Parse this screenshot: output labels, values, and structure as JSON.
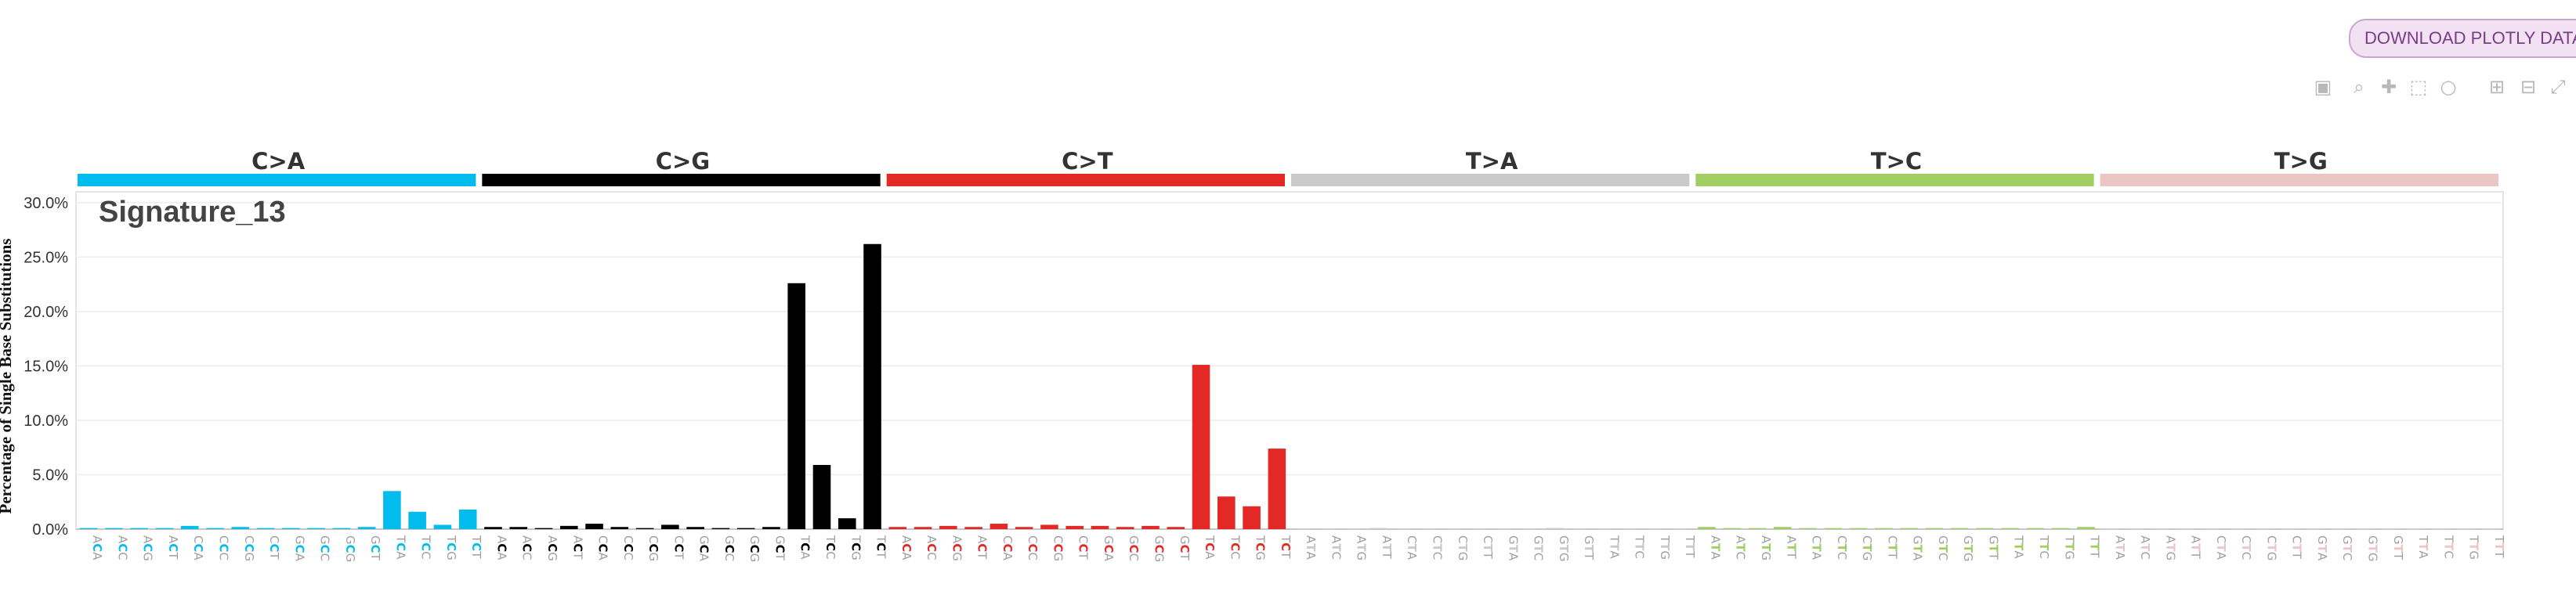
{
  "toolbar": {
    "download_label": "DOWNLOAD PLOTLY DATA S",
    "icons": [
      "camera-icon",
      "zoom-icon",
      "pan-icon",
      "box-select-icon",
      "lasso-icon",
      "zoom-in-icon",
      "zoom-out-icon",
      "autoscale-icon"
    ]
  },
  "chart_data": {
    "type": "bar",
    "title": "Signature_13",
    "ylabel": "Percentage of Single Base Substitutions",
    "ylim": [
      0,
      31
    ],
    "yticks": [
      "0.0%",
      "5.0%",
      "10.0%",
      "15.0%",
      "20.0%",
      "25.0%",
      "30.0%"
    ],
    "grid": true,
    "groups": [
      {
        "name": "C>A",
        "color": "#03bcee",
        "labels": [
          "ACA",
          "ACC",
          "ACG",
          "ACT",
          "CCA",
          "CCC",
          "CCG",
          "CCT",
          "GCA",
          "GCC",
          "GCG",
          "GCT",
          "TCA",
          "TCC",
          "TCG",
          "TCT"
        ],
        "values": [
          0.1,
          0.1,
          0.1,
          0.1,
          0.3,
          0.1,
          0.2,
          0.1,
          0.1,
          0.1,
          0.1,
          0.2,
          3.5,
          1.6,
          0.4,
          1.8
        ]
      },
      {
        "name": "C>G",
        "color": "#010101",
        "labels": [
          "ACA",
          "ACC",
          "ACG",
          "ACT",
          "CCA",
          "CCC",
          "CCG",
          "CCT",
          "GCA",
          "GCC",
          "GCG",
          "GCT",
          "TCA",
          "TCC",
          "TCG",
          "TCT"
        ],
        "values": [
          0.2,
          0.2,
          0.1,
          0.3,
          0.5,
          0.2,
          0.1,
          0.4,
          0.2,
          0.1,
          0.1,
          0.2,
          22.6,
          5.9,
          1.0,
          26.2
        ]
      },
      {
        "name": "C>T",
        "color": "#e32926",
        "labels": [
          "ACA",
          "ACC",
          "ACG",
          "ACT",
          "CCA",
          "CCC",
          "CCG",
          "CCT",
          "GCA",
          "GCC",
          "GCG",
          "GCT",
          "TCA",
          "TCC",
          "TCG",
          "TCT"
        ],
        "values": [
          0.2,
          0.2,
          0.3,
          0.2,
          0.5,
          0.2,
          0.4,
          0.3,
          0.3,
          0.2,
          0.3,
          0.2,
          15.1,
          3.0,
          2.1,
          7.4
        ]
      },
      {
        "name": "T>A",
        "color": "#cac9c9",
        "labels": [
          "ATA",
          "ATC",
          "ATG",
          "ATT",
          "CTA",
          "CTC",
          "CTG",
          "CTT",
          "GTA",
          "GTC",
          "GTG",
          "GTT",
          "TTA",
          "TTC",
          "TTG",
          "TTT"
        ],
        "values": [
          0.05,
          0.05,
          0.05,
          0.1,
          0.05,
          0.05,
          0.05,
          0.05,
          0.05,
          0.05,
          0.1,
          0.05,
          0.05,
          0.05,
          0.05,
          0.05
        ]
      },
      {
        "name": "T>C",
        "color": "#a1ce63",
        "labels": [
          "ATA",
          "ATC",
          "ATG",
          "ATT",
          "CTA",
          "CTC",
          "CTG",
          "CTT",
          "GTA",
          "GTC",
          "GTG",
          "GTT",
          "TTA",
          "TTC",
          "TTG",
          "TTT"
        ],
        "values": [
          0.2,
          0.1,
          0.1,
          0.2,
          0.1,
          0.1,
          0.1,
          0.1,
          0.1,
          0.1,
          0.1,
          0.1,
          0.1,
          0.1,
          0.1,
          0.2
        ]
      },
      {
        "name": "T>G",
        "color": "#ebc6c4",
        "labels": [
          "ATA",
          "ATC",
          "ATG",
          "ATT",
          "CTA",
          "CTC",
          "CTG",
          "CTT",
          "GTA",
          "GTC",
          "GTG",
          "GTT",
          "TTA",
          "TTC",
          "TTG",
          "TTT"
        ],
        "values": [
          0.05,
          0.05,
          0.05,
          0.05,
          0.05,
          0.05,
          0.05,
          0.05,
          0.05,
          0.05,
          0.05,
          0.05,
          0.05,
          0.05,
          0.05,
          0.05
        ]
      }
    ]
  }
}
